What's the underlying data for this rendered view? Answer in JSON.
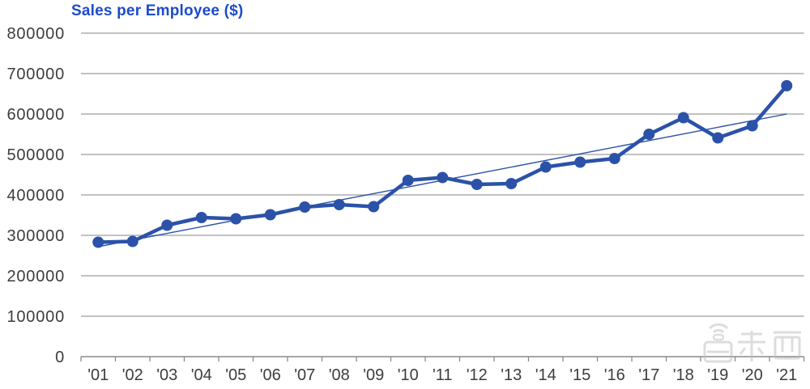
{
  "chart_data": {
    "type": "line",
    "title": "Sales per Employee ($)",
    "series_name": "Sales per Employee",
    "categories": [
      "'01",
      "'02",
      "'03",
      "'04",
      "'05",
      "'06",
      "'07",
      "'08",
      "'09",
      "'10",
      "'11",
      "'12",
      "'13",
      "'14",
      "'15",
      "'16",
      "'17",
      "'18",
      "'19",
      "'20",
      "'21"
    ],
    "values": [
      283000,
      285000,
      325000,
      344000,
      341000,
      351000,
      370000,
      376000,
      371000,
      436000,
      443000,
      426000,
      428000,
      469000,
      481000,
      490000,
      550000,
      591000,
      541000,
      571000,
      670000
    ],
    "ylim": [
      0,
      800000
    ],
    "ytick_step": 100000,
    "ytick_labels_top_to_bottom": [
      "800000",
      "700000",
      "600000",
      "500000",
      "400000",
      "300000",
      "200000",
      "100000",
      "0"
    ],
    "xlabel": "",
    "ylabel": "",
    "grid": "horizontal-only",
    "legend": "none",
    "trendline": {
      "type": "linear",
      "start_value": 272000,
      "end_value": 600000,
      "start_category": "'01",
      "end_category": "'21"
    },
    "marker": "filled-circle",
    "colors": {
      "title": "#1C4BCC",
      "series": "#2B52A8",
      "grid": "#ADADAD",
      "axis": "#8A8A8A",
      "tick_text": "#3D3D3D",
      "watermark": "#BDBDBD",
      "background": "#FFFFFF"
    }
  },
  "watermark": {
    "text": "智东西"
  }
}
